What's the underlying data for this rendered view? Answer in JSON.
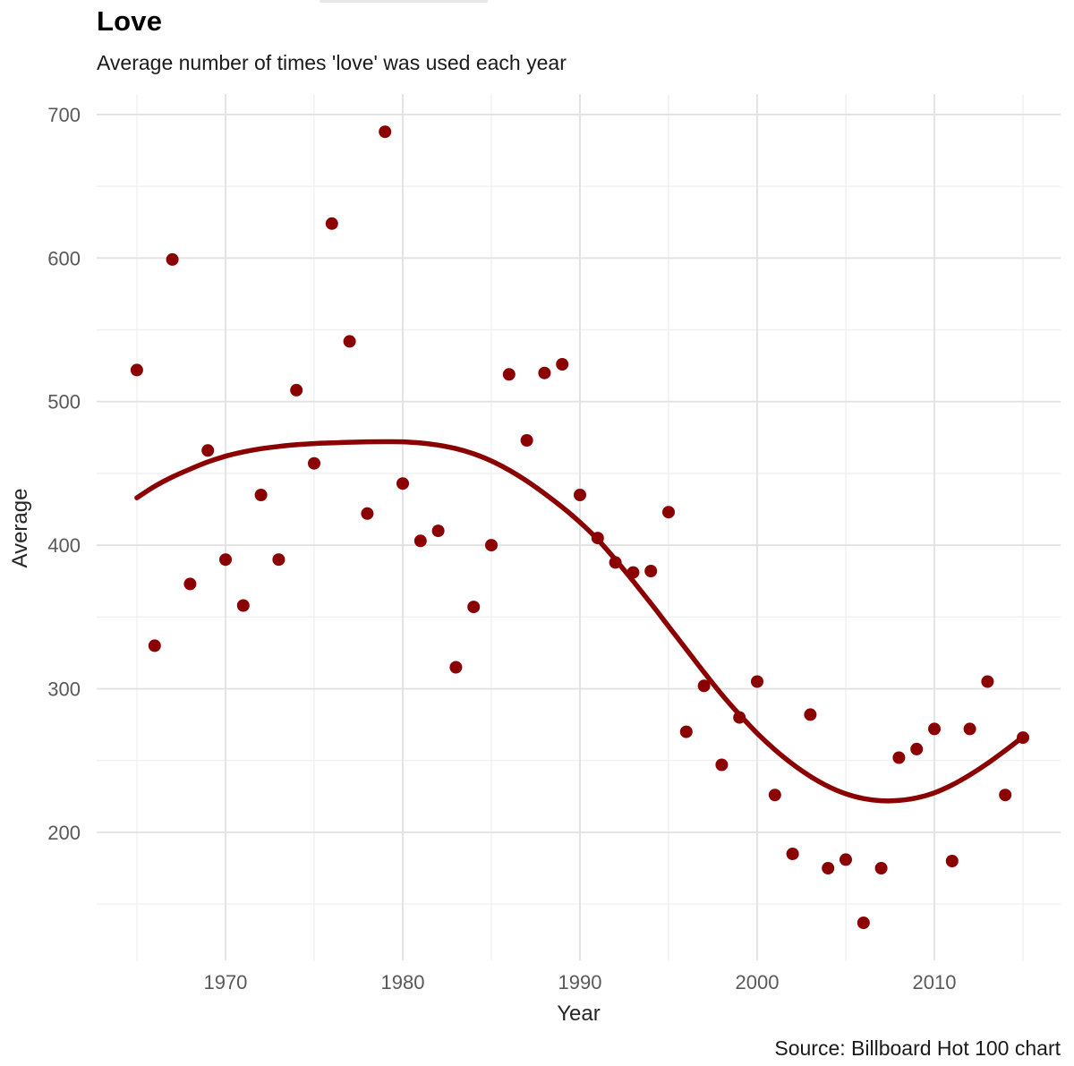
{
  "header": {
    "title": "Love",
    "subtitle": "Average number of times 'love' was used each year"
  },
  "footer": {
    "source": "Source: Billboard Hot 100 chart"
  },
  "chart_data": {
    "type": "scatter",
    "title": "Love",
    "subtitle": "Average number of times 'love' was used each year",
    "xlabel": "Year",
    "ylabel": "Average",
    "caption": "Source: Billboard Hot 100 chart",
    "legend_position": "none",
    "grid": true,
    "xlim": [
      1962.73,
      2017.12
    ],
    "ylim": [
      110.8,
      714.3
    ],
    "x_ticks": {
      "values": [
        1970,
        1980,
        1990,
        2000,
        2010
      ],
      "labels": [
        "1970",
        "1980",
        "1990",
        "2000",
        "2010"
      ]
    },
    "x_minor_ticks": [
      1965,
      1975,
      1985,
      1995,
      2005,
      2015
    ],
    "y_ticks": {
      "values": [
        200,
        300,
        400,
        500,
        600,
        700
      ],
      "labels": [
        "200",
        "300",
        "400",
        "500",
        "600",
        "700"
      ]
    },
    "y_minor_ticks": [
      150,
      250,
      350,
      450,
      550,
      650
    ],
    "colors": {
      "point": "#8B0000",
      "trend_line": "#8B0000",
      "grid_major": "#e2e2e2",
      "grid_minor": "#efefef",
      "axis_text": "#595959",
      "axis_title": "#262626"
    },
    "series": [
      {
        "name": "avg-love-mentions-per-year",
        "x": [
          1965,
          1966,
          1967,
          1968,
          1969,
          1970,
          1971,
          1972,
          1973,
          1974,
          1975,
          1976,
          1977,
          1978,
          1979,
          1980,
          1981,
          1982,
          1983,
          1984,
          1985,
          1986,
          1987,
          1988,
          1989,
          1990,
          1991,
          1992,
          1993,
          1994,
          1995,
          1996,
          1997,
          1998,
          1999,
          2000,
          2001,
          2002,
          2003,
          2004,
          2005,
          2006,
          2007,
          2008,
          2009,
          2010,
          2011,
          2012,
          2013,
          2014,
          2015
        ],
        "y": [
          522,
          330,
          599,
          373,
          466,
          390,
          358,
          435,
          390,
          508,
          457,
          624,
          542,
          422,
          688,
          443,
          403,
          410,
          315,
          357,
          400,
          519,
          473,
          520,
          526,
          435,
          405,
          388,
          381,
          382,
          423,
          270,
          302,
          247,
          280,
          305,
          226,
          185,
          282,
          175,
          181,
          137,
          175,
          252,
          258,
          272,
          180,
          272,
          305,
          226,
          266
        ]
      }
    ],
    "trend_line": {
      "name": "loess-smooth",
      "x": [
        1965,
        1966,
        1967,
        1968,
        1969,
        1970,
        1971,
        1972,
        1973,
        1974,
        1975,
        1976,
        1977,
        1978,
        1979,
        1980,
        1981,
        1982,
        1983,
        1984,
        1985,
        1986,
        1987,
        1988,
        1989,
        1990,
        1991,
        1992,
        1993,
        1994,
        1995,
        1996,
        1997,
        1998,
        1999,
        2000,
        2001,
        2002,
        2003,
        2004,
        2005,
        2006,
        2007,
        2008,
        2009,
        2010,
        2011,
        2012,
        2013,
        2014,
        2015
      ],
      "y": [
        433,
        441,
        447.5,
        453,
        458,
        462,
        465,
        467.2,
        468.8,
        470,
        470.8,
        471.3,
        471.7,
        472,
        472.1,
        472,
        471.2,
        469.7,
        467.3,
        463.7,
        458.7,
        452.3,
        444.7,
        436,
        426.5,
        416,
        404,
        390,
        375,
        359.5,
        343.5,
        327.5,
        311.5,
        296,
        282,
        269,
        257.5,
        247.5,
        239,
        232,
        226.8,
        223.5,
        222,
        222.2,
        224,
        227.5,
        233,
        240,
        248,
        257,
        266.5
      ]
    }
  }
}
